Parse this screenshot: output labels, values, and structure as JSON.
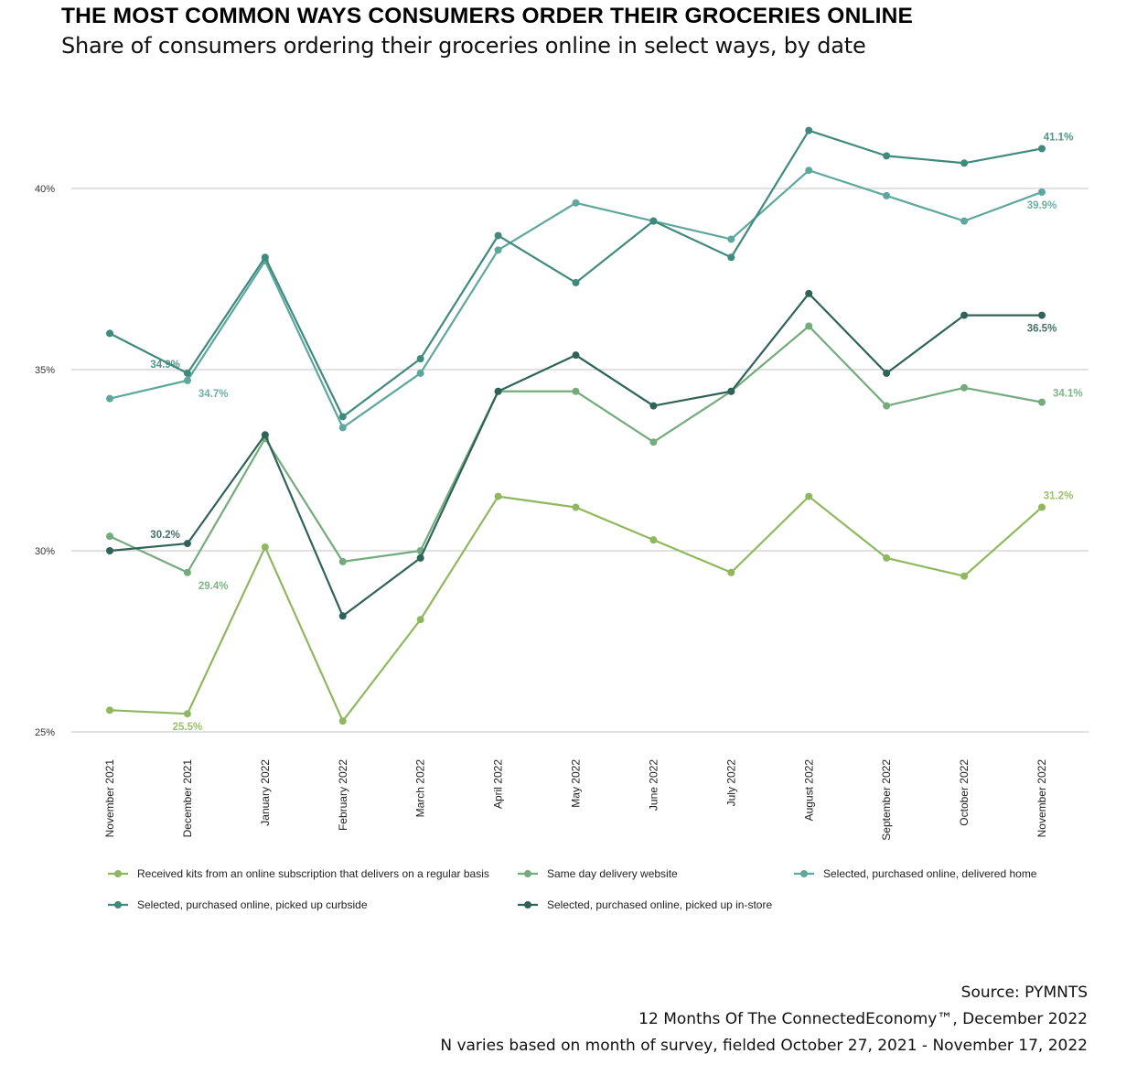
{
  "header": {
    "title": "THE MOST COMMON WAYS CONSUMERS ORDER THEIR GROCERIES ONLINE",
    "subtitle": "Share of consumers ordering their groceries online in select ways, by date"
  },
  "footer": {
    "source": "Source: PYMNTS",
    "report": "12 Months Of The ConnectedEconomy™, December 2022",
    "note": "N varies based on month of survey, fielded October 27, 2021 - November 17, 2022"
  },
  "chart_data": {
    "type": "line",
    "title": "THE MOST COMMON WAYS CONSUMERS ORDER THEIR GROCERIES ONLINE",
    "subtitle": "Share of consumers ordering their groceries online in select ways, by date",
    "xlabel": "",
    "ylabel": "",
    "ylim": [
      25,
      42
    ],
    "yticks": [
      25,
      30,
      35,
      40
    ],
    "ytick_labels": [
      "25%",
      "30%",
      "35%",
      "40%"
    ],
    "grid": true,
    "legend_position": "bottom",
    "categories": [
      "November 2021",
      "December 2021",
      "January 2022",
      "February 2022",
      "March 2022",
      "April 2022",
      "May 2022",
      "June 2022",
      "July 2022",
      "August 2022",
      "September 2022",
      "October 2022",
      "November 2022"
    ],
    "series": [
      {
        "name": "Received kits from an online subscription that delivers on a regular basis",
        "color": "#8fb85e",
        "values": [
          25.6,
          25.5,
          30.1,
          25.3,
          28.1,
          31.5,
          31.2,
          30.3,
          29.4,
          31.5,
          29.8,
          29.3,
          31.2
        ],
        "labels": [
          {
            "index": 1,
            "text": "25.5%",
            "pos": "below"
          },
          {
            "index": 12,
            "text": "31.2%",
            "pos": "above"
          }
        ]
      },
      {
        "name": "Same day delivery website",
        "color": "#74ab7c",
        "values": [
          30.4,
          29.4,
          33.1,
          29.7,
          30.0,
          34.4,
          34.4,
          33.0,
          34.4,
          36.2,
          34.0,
          34.5,
          34.1
        ],
        "labels": [
          {
            "index": 1,
            "text": "29.4%",
            "pos": "right"
          },
          {
            "index": 12,
            "text": "34.1%",
            "pos": "right"
          }
        ]
      },
      {
        "name": "Selected, purchased online, delivered home",
        "color": "#5ea79c",
        "values": [
          34.2,
          34.7,
          38.0,
          33.4,
          34.9,
          38.3,
          39.6,
          39.1,
          38.6,
          40.5,
          39.8,
          39.1,
          39.9
        ],
        "labels": [
          {
            "index": 1,
            "text": "34.7%",
            "pos": "right"
          },
          {
            "index": 12,
            "text": "39.9%",
            "pos": "below"
          }
        ]
      },
      {
        "name": "Selected, purchased online, picked up curbside",
        "color": "#3f8a7d",
        "values": [
          36.0,
          34.9,
          38.1,
          33.7,
          35.3,
          38.7,
          37.4,
          39.1,
          38.1,
          41.6,
          40.9,
          40.7,
          41.1
        ],
        "labels": [
          {
            "index": 1,
            "text": "34.9%",
            "pos": "left"
          },
          {
            "index": 12,
            "text": "41.1%",
            "pos": "above"
          }
        ]
      },
      {
        "name": "Selected, purchased online, picked up in-store",
        "color": "#2f6358",
        "values": [
          30.0,
          30.2,
          33.2,
          28.2,
          29.8,
          34.4,
          35.4,
          34.0,
          34.4,
          37.1,
          34.9,
          36.5,
          36.5
        ],
        "labels": [
          {
            "index": 1,
            "text": "30.2%",
            "pos": "left"
          },
          {
            "index": 12,
            "text": "36.5%",
            "pos": "below"
          }
        ]
      }
    ]
  }
}
